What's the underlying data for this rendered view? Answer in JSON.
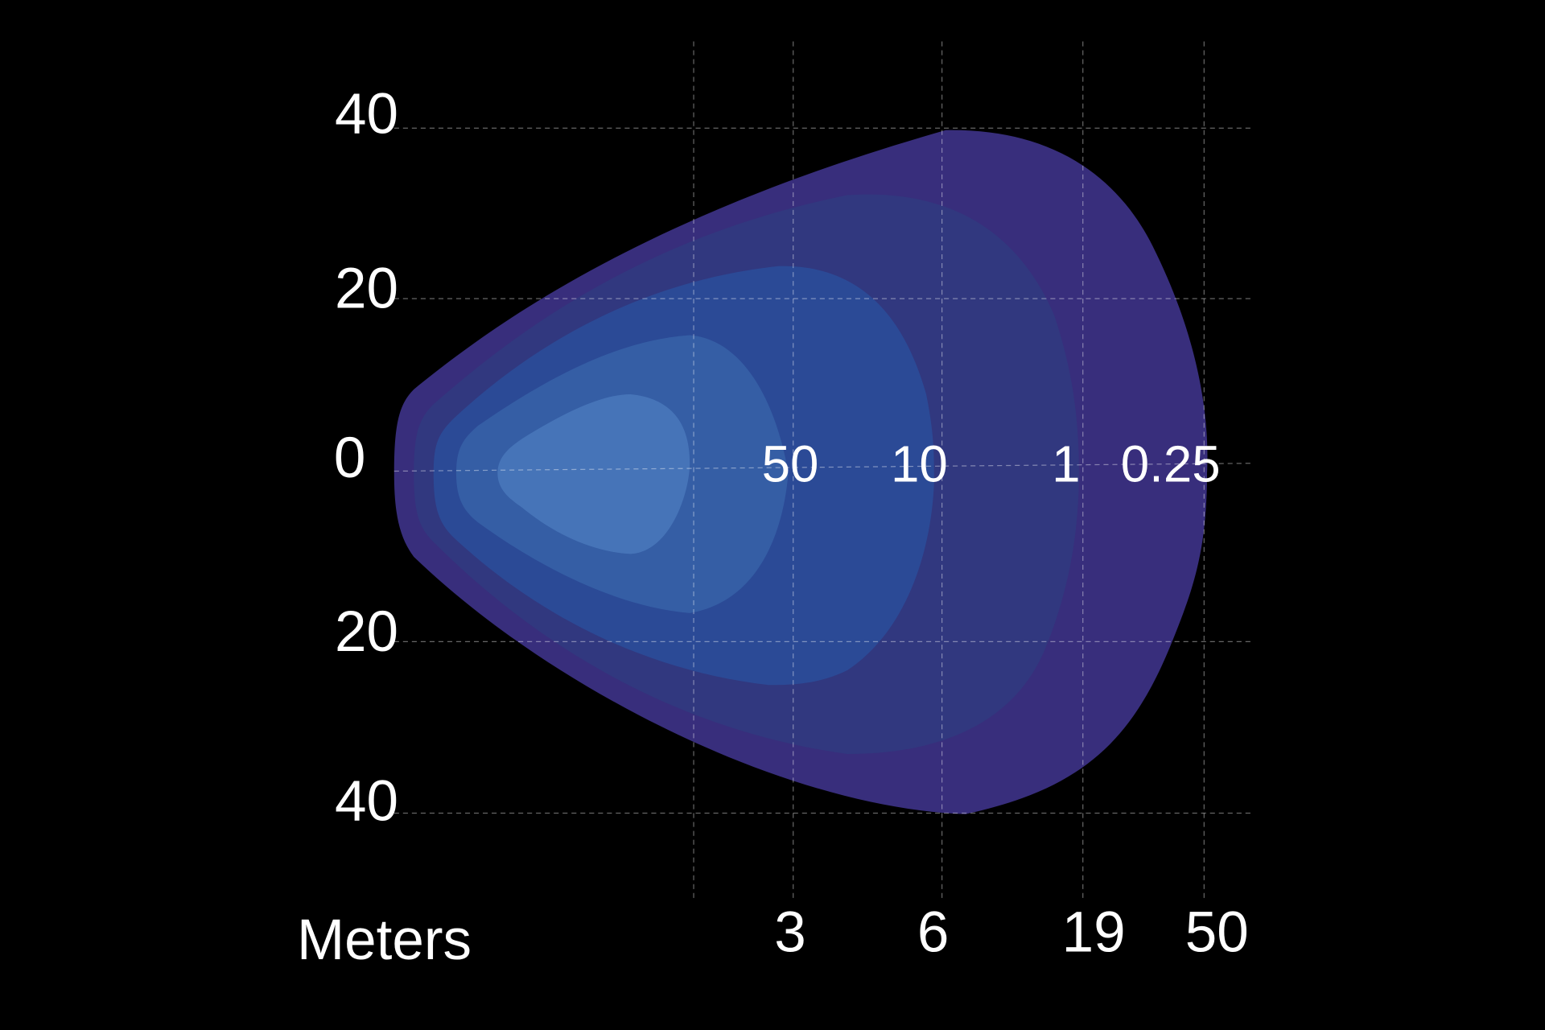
{
  "y_axis": {
    "labels": [
      "40",
      "20",
      "0",
      "20",
      "40"
    ]
  },
  "x_axis": {
    "title": "Meters",
    "labels": [
      "3",
      "6",
      "19",
      "50"
    ]
  },
  "contour_labels": [
    "50",
    "10",
    "1",
    "0.25"
  ]
}
